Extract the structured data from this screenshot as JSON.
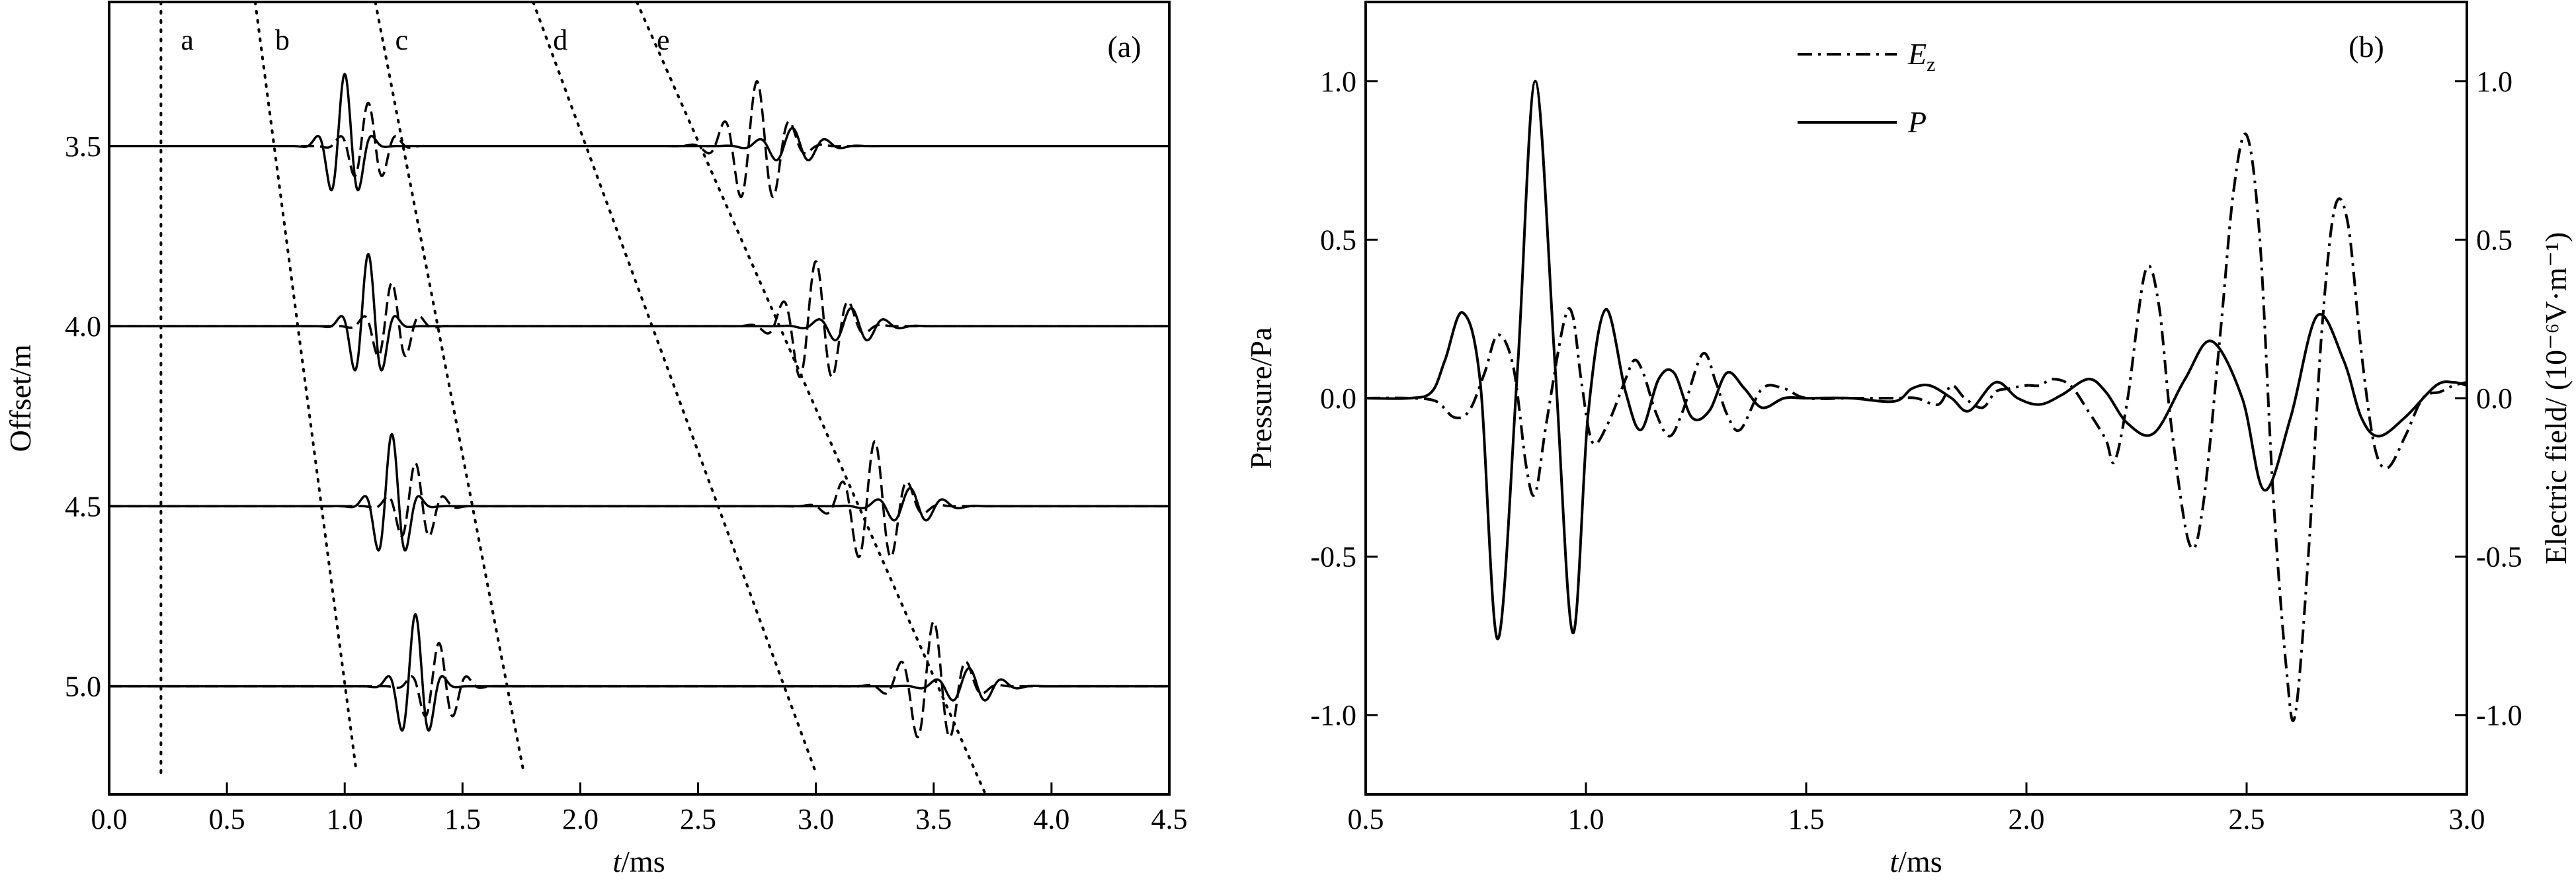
{
  "chart_data": [
    {
      "panel_label": "(a)",
      "type": "line",
      "xlabel_italic": "t",
      "xlabel_rest": "/ms",
      "ylabel": "Offset/m",
      "xlim": [
        0.0,
        4.5
      ],
      "ylim": [
        3.1,
        5.3
      ],
      "y_inverted": true,
      "x_ticks": [
        "0.0",
        "0.5",
        "1.0",
        "1.5",
        "2.0",
        "2.5",
        "3.0",
        "3.5",
        "4.0",
        "4.5"
      ],
      "y_ticks": [
        "3.5",
        "4.0",
        "4.5",
        "5.0"
      ],
      "offsets": [
        3.5,
        4.0,
        4.5,
        5.0
      ],
      "trace_scale_m_per_unit": 0.2,
      "series": [
        {
          "style": "solid",
          "wavelets": [
            {
              "group": "b/c",
              "center_ms_at_3_5m": 1.0,
              "move_ms_per_m": 0.2,
              "amplitude": 1.0,
              "freq_khz": 8.0,
              "width_ms": 0.06
            },
            {
              "group": "d/e",
              "center_ms_at_3_5m": 2.9,
              "move_ms_per_m": 0.5,
              "amplitude": 0.25,
              "freq_khz": 7.0,
              "width_ms": 0.1
            }
          ]
        },
        {
          "style": "dashed",
          "wavelets": [
            {
              "group": "b/c",
              "center_ms_at_3_5m": 1.1,
              "move_ms_per_m": 0.2,
              "amplitude": 0.6,
              "freq_khz": 8.0,
              "width_ms": 0.07
            },
            {
              "group": "d/e",
              "center_ms_at_3_5m": 2.75,
              "move_ms_per_m": 0.5,
              "amplitude": 0.9,
              "freq_khz": 7.0,
              "width_ms": 0.1
            }
          ]
        }
      ],
      "moveout_lines": [
        {
          "label": "a",
          "t_start": 0.22,
          "y_start": 3.1,
          "t_end": 0.22,
          "y_end": 5.24
        },
        {
          "label": "b",
          "t_start": 0.62,
          "y_start": 3.1,
          "t_end": 1.05,
          "y_end": 5.24
        },
        {
          "label": "c",
          "t_start": 1.13,
          "y_start": 3.1,
          "t_end": 1.76,
          "y_end": 5.24
        },
        {
          "label": "d",
          "t_start": 1.8,
          "y_start": 3.1,
          "t_end": 3.0,
          "y_end": 5.24
        },
        {
          "label": "e",
          "t_start": 2.24,
          "y_start": 3.1,
          "t_end": 3.72,
          "y_end": 5.3
        }
      ]
    },
    {
      "panel_label": "(b)",
      "type": "line",
      "xlabel_italic": "t",
      "xlabel_rest": "/ms",
      "ylabel_left": "Pressure/Pa",
      "ylabel_right": "Electric field/ (10⁻⁶V·m⁻¹)",
      "xlim": [
        0.5,
        3.0
      ],
      "ylim": [
        -1.25,
        1.25
      ],
      "x_ticks": [
        "0.5",
        "1.0",
        "1.5",
        "2.0",
        "2.5",
        "3.0"
      ],
      "y_ticks": [
        "1.0",
        "0.5",
        "0.0",
        "-0.5",
        "-1.0"
      ],
      "legend": {
        "position": "top-center",
        "entries": [
          {
            "style": "dashdot",
            "italic": "E",
            "sub": "z"
          },
          {
            "style": "solid",
            "italic": "P",
            "sub": ""
          }
        ]
      },
      "series": [
        {
          "name": "P",
          "style": "solid",
          "points": [
            [
              0.5,
              0.0
            ],
            [
              0.6,
              0.0
            ],
            [
              0.65,
              0.02
            ],
            [
              0.68,
              0.12
            ],
            [
              0.72,
              0.27
            ],
            [
              0.76,
              0.05
            ],
            [
              0.8,
              -0.76
            ],
            [
              0.845,
              0.1
            ],
            [
              0.885,
              1.0
            ],
            [
              0.93,
              0.1
            ],
            [
              0.97,
              -0.74
            ],
            [
              1.005,
              -0.05
            ],
            [
              1.045,
              0.28
            ],
            [
              1.09,
              0.02
            ],
            [
              1.125,
              -0.1
            ],
            [
              1.165,
              0.06
            ],
            [
              1.2,
              0.08
            ],
            [
              1.24,
              -0.06
            ],
            [
              1.28,
              -0.04
            ],
            [
              1.32,
              0.08
            ],
            [
              1.36,
              0.03
            ],
            [
              1.4,
              -0.03
            ],
            [
              1.45,
              0.0
            ],
            [
              1.5,
              0.0
            ],
            [
              1.6,
              0.0
            ],
            [
              1.7,
              -0.01
            ],
            [
              1.74,
              0.03
            ],
            [
              1.78,
              0.04
            ],
            [
              1.83,
              0.0
            ],
            [
              1.87,
              -0.04
            ],
            [
              1.93,
              0.05
            ],
            [
              1.98,
              0.0
            ],
            [
              2.03,
              -0.02
            ],
            [
              2.08,
              0.01
            ],
            [
              2.14,
              0.06
            ],
            [
              2.18,
              0.02
            ],
            [
              2.23,
              -0.08
            ],
            [
              2.29,
              -0.11
            ],
            [
              2.36,
              0.06
            ],
            [
              2.42,
              0.18
            ],
            [
              2.49,
              0.0
            ],
            [
              2.54,
              -0.29
            ],
            [
              2.6,
              -0.06
            ],
            [
              2.66,
              0.26
            ],
            [
              2.72,
              0.12
            ],
            [
              2.76,
              -0.06
            ],
            [
              2.8,
              -0.12
            ],
            [
              2.86,
              -0.06
            ],
            [
              2.93,
              0.04
            ],
            [
              2.97,
              0.05
            ],
            [
              3.0,
              0.04
            ]
          ]
        },
        {
          "name": "Ez",
          "style": "dashdot",
          "points": [
            [
              0.5,
              0.0
            ],
            [
              0.6,
              0.0
            ],
            [
              0.66,
              -0.01
            ],
            [
              0.7,
              -0.06
            ],
            [
              0.735,
              -0.04
            ],
            [
              0.77,
              0.08
            ],
            [
              0.8,
              0.2
            ],
            [
              0.835,
              0.1
            ],
            [
              0.865,
              -0.22
            ],
            [
              0.885,
              -0.3
            ],
            [
              0.91,
              -0.08
            ],
            [
              0.95,
              0.24
            ],
            [
              0.97,
              0.26
            ],
            [
              0.99,
              0.05
            ],
            [
              1.015,
              -0.14
            ],
            [
              1.05,
              -0.08
            ],
            [
              1.09,
              0.06
            ],
            [
              1.11,
              0.12
            ],
            [
              1.13,
              0.08
            ],
            [
              1.16,
              -0.05
            ],
            [
              1.19,
              -0.12
            ],
            [
              1.22,
              -0.04
            ],
            [
              1.265,
              0.14
            ],
            [
              1.295,
              0.05
            ],
            [
              1.32,
              -0.05
            ],
            [
              1.35,
              -0.1
            ],
            [
              1.4,
              0.03
            ],
            [
              1.45,
              0.03
            ],
            [
              1.5,
              0.0
            ],
            [
              1.6,
              0.0
            ],
            [
              1.7,
              0.0
            ],
            [
              1.75,
              0.0
            ],
            [
              1.8,
              -0.02
            ],
            [
              1.83,
              0.04
            ],
            [
              1.86,
              0.0
            ],
            [
              1.9,
              -0.03
            ],
            [
              1.93,
              0.02
            ],
            [
              1.96,
              0.03
            ],
            [
              2.0,
              0.04
            ],
            [
              2.03,
              0.04
            ],
            [
              2.06,
              0.06
            ],
            [
              2.1,
              0.04
            ],
            [
              2.14,
              -0.04
            ],
            [
              2.18,
              -0.13
            ],
            [
              2.2,
              -0.2
            ],
            [
              2.23,
              0.0
            ],
            [
              2.27,
              0.4
            ],
            [
              2.3,
              0.3
            ],
            [
              2.33,
              -0.1
            ],
            [
              2.37,
              -0.46
            ],
            [
              2.4,
              -0.35
            ],
            [
              2.44,
              0.2
            ],
            [
              2.47,
              0.65
            ],
            [
              2.5,
              0.83
            ],
            [
              2.53,
              0.5
            ],
            [
              2.56,
              -0.3
            ],
            [
              2.59,
              -0.85
            ],
            [
              2.61,
              -1.0
            ],
            [
              2.64,
              -0.5
            ],
            [
              2.67,
              0.2
            ],
            [
              2.7,
              0.6
            ],
            [
              2.73,
              0.55
            ],
            [
              2.76,
              0.15
            ],
            [
              2.79,
              -0.15
            ],
            [
              2.82,
              -0.22
            ],
            [
              2.86,
              -0.12
            ],
            [
              2.9,
              0.0
            ],
            [
              2.94,
              0.02
            ],
            [
              2.97,
              0.04
            ],
            [
              3.0,
              0.05
            ]
          ]
        }
      ]
    }
  ]
}
